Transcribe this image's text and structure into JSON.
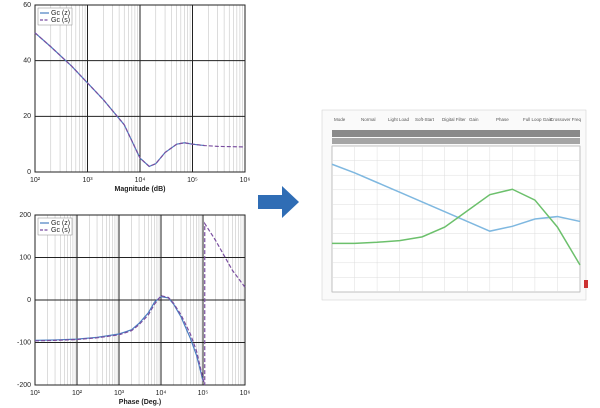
{
  "chart_data": [
    {
      "type": "line",
      "xscale": "log",
      "grid": true,
      "legend": "top-left",
      "xlabel": "Magnitude (dB)",
      "xlim": [
        100,
        1000000
      ],
      "xticks": [
        {
          "value": 100,
          "label": "10²"
        },
        {
          "value": 1000,
          "label": "10³"
        },
        {
          "value": 10000,
          "label": "10⁴"
        },
        {
          "value": 100000,
          "label": "10⁵"
        },
        {
          "value": 1000000,
          "label": "10⁶"
        }
      ],
      "ylim": [
        0,
        60
      ],
      "yticks": [
        0,
        20,
        40,
        60
      ],
      "series": [
        {
          "name": "Gc (z)",
          "color": "#4a7fc1",
          "dash": false,
          "x": [
            100,
            200,
            500,
            1000,
            2000,
            5000,
            10000,
            15000,
            20000,
            30000,
            50000,
            70000,
            100000,
            170000
          ],
          "values": [
            50,
            45,
            38,
            32,
            26,
            17,
            5,
            2,
            3,
            7,
            10,
            10.5,
            10,
            9.5
          ]
        },
        {
          "name": "Gc (s)",
          "color": "#7a4ea0",
          "dash": true,
          "x": [
            100,
            200,
            500,
            1000,
            2000,
            5000,
            10000,
            15000,
            20000,
            30000,
            50000,
            70000,
            100000,
            170000,
            300000,
            1000000
          ],
          "values": [
            50,
            45,
            38,
            32,
            26,
            17,
            5,
            2,
            3,
            7,
            10,
            10.5,
            10,
            9.5,
            9.2,
            9
          ]
        }
      ]
    },
    {
      "type": "line",
      "xscale": "log",
      "grid": true,
      "legend": "top-left",
      "xlabel": "Phase (Deg.)",
      "xlim": [
        10,
        1000000
      ],
      "xticks": [
        {
          "value": 10,
          "label": "10¹"
        },
        {
          "value": 100,
          "label": "10²"
        },
        {
          "value": 1000,
          "label": "10³"
        },
        {
          "value": 10000,
          "label": "10⁴"
        },
        {
          "value": 100000,
          "label": "10⁵"
        },
        {
          "value": 1000000,
          "label": "10⁶"
        }
      ],
      "ylim": [
        -200,
        200
      ],
      "yticks": [
        -200,
        -100,
        0,
        100,
        200
      ],
      "series": [
        {
          "name": "Gc (z)",
          "color": "#4a7fc1",
          "dash": false,
          "x": [
            10,
            30,
            100,
            300,
            1000,
            2000,
            3000,
            5000,
            7000,
            10000,
            15000,
            20000,
            30000,
            50000,
            70000,
            100000
          ],
          "values": [
            -95,
            -94,
            -92,
            -88,
            -80,
            -70,
            -55,
            -30,
            -5,
            8,
            5,
            -10,
            -40,
            -90,
            -130,
            -190
          ]
        },
        {
          "name": "Gc (s)",
          "color": "#7a4ea0",
          "dash": true,
          "x": [
            10,
            30,
            100,
            300,
            1000,
            2000,
            3000,
            5000,
            7000,
            10000,
            15000,
            20000,
            30000,
            50000,
            70000,
            100000,
            110000,
            110000,
            200000,
            500000,
            1000000
          ],
          "values": [
            -96,
            -95,
            -93,
            -89,
            -82,
            -72,
            -58,
            -35,
            -10,
            10,
            6,
            -8,
            -35,
            -80,
            -120,
            -185,
            -200,
            180,
            140,
            70,
            30
          ]
        }
      ]
    },
    {
      "type": "line",
      "grid": true,
      "toolbar": [
        "Mode",
        "Normal",
        "Light Load",
        "Soft-Start",
        "Digital Filter",
        "Gain",
        "Phase",
        "Full Loop Gain",
        "Crossover Freq"
      ],
      "categories": [
        null,
        null,
        null,
        null,
        null,
        null,
        null,
        null,
        null,
        null,
        null,
        null
      ],
      "ylim": [
        -60,
        60
      ],
      "y2lim": [
        -180,
        90
      ],
      "series": [
        {
          "color": "#7fb8e0",
          "values": [
            45,
            38,
            30,
            22,
            14,
            6,
            -2,
            -10,
            -6,
            0,
            2,
            -2
          ]
        },
        {
          "color": "#6cc06c",
          "axis": "y2",
          "values": [
            -90,
            -90,
            -88,
            -85,
            -78,
            -60,
            -30,
            0,
            10,
            -10,
            -60,
            -130
          ]
        }
      ]
    }
  ]
}
